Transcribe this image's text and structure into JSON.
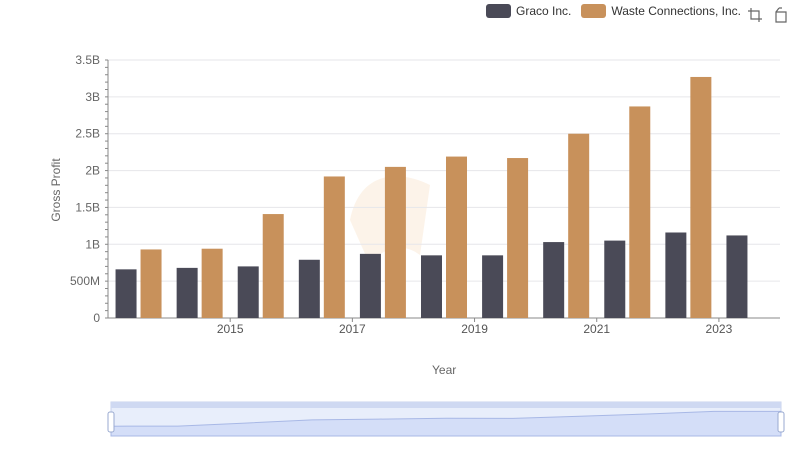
{
  "legend": [
    {
      "name": "Graco Inc.",
      "color": "#4a4a57"
    },
    {
      "name": "Waste Connections, Inc.",
      "color": "#c8915b"
    }
  ],
  "toolbox": {
    "zoom_icon": "zoom-select-icon",
    "reset_icon": "zoom-reset-icon"
  },
  "chart_data": {
    "type": "bar",
    "xlabel": "Year",
    "ylabel": "Gross Profit",
    "categories": [
      "2014",
      "2015",
      "2016",
      "2017",
      "2018",
      "2019",
      "2020",
      "2021",
      "2022",
      "2023",
      "2024"
    ],
    "x_tick_labels": [
      "2015",
      "2017",
      "2019",
      "2021",
      "2023"
    ],
    "y_ticks": [
      {
        "value": 0,
        "label": "0"
      },
      {
        "value": 500000000,
        "label": "500M"
      },
      {
        "value": 1000000000,
        "label": "1B"
      },
      {
        "value": 1500000000,
        "label": "1.5B"
      },
      {
        "value": 2000000000,
        "label": "2B"
      },
      {
        "value": 2500000000,
        "label": "2.5B"
      },
      {
        "value": 3000000000,
        "label": "3B"
      },
      {
        "value": 3500000000,
        "label": "3.5B"
      }
    ],
    "ylim": [
      0,
      3500000000
    ],
    "grid": true,
    "legend_position": "top-right",
    "series": [
      {
        "name": "Graco Inc.",
        "color": "#4a4a57",
        "values": [
          660000000,
          680000000,
          700000000,
          790000000,
          870000000,
          850000000,
          850000000,
          1030000000,
          1050000000,
          1160000000,
          1120000000
        ]
      },
      {
        "name": "Waste Connections, Inc.",
        "color": "#c8915b",
        "values": [
          930000000,
          940000000,
          1410000000,
          1920000000,
          2050000000,
          2190000000,
          2170000000,
          2500000000,
          2870000000,
          3270000000,
          null
        ]
      }
    ]
  }
}
